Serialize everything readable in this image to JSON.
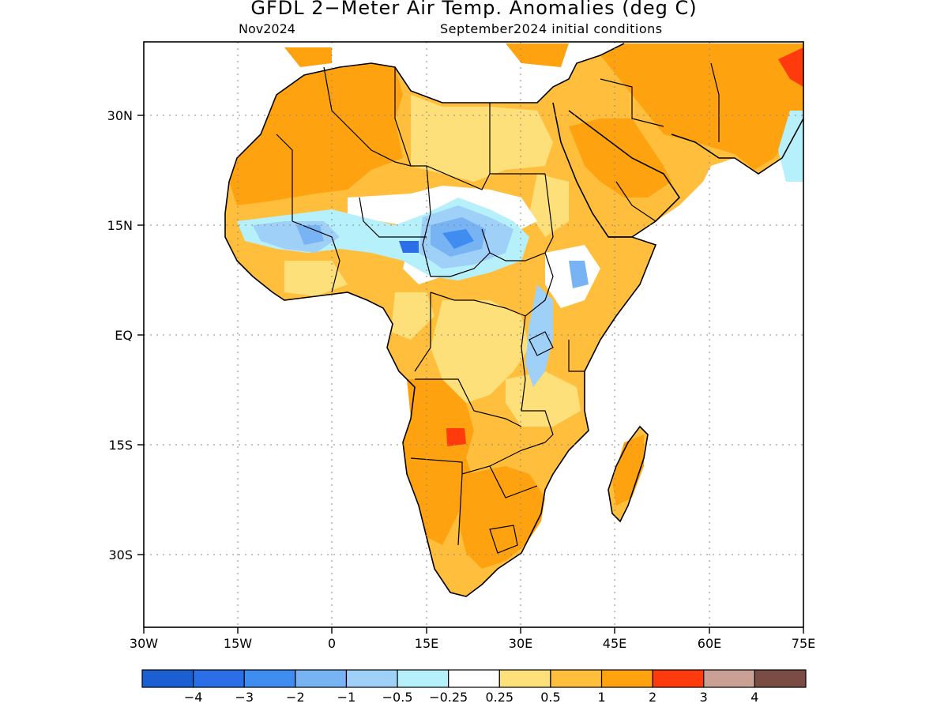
{
  "title": "GFDL 2−Meter Air Temp. Anomalies (deg C)",
  "subtitle_left": "Nov2024",
  "subtitle_right": "September2024 initial conditions",
  "map": {
    "lon_range": [
      -30,
      75
    ],
    "lat_range": [
      -40,
      40
    ],
    "lon_ticks": [
      {
        "value": -30,
        "label": "30W"
      },
      {
        "value": -15,
        "label": "15W"
      },
      {
        "value": 0,
        "label": "0"
      },
      {
        "value": 15,
        "label": "15E"
      },
      {
        "value": 30,
        "label": "30E"
      },
      {
        "value": 45,
        "label": "45E"
      },
      {
        "value": 60,
        "label": "60E"
      },
      {
        "value": 75,
        "label": "75E"
      }
    ],
    "lat_ticks": [
      {
        "value": 30,
        "label": "30N"
      },
      {
        "value": 15,
        "label": "15N"
      },
      {
        "value": 0,
        "label": "EQ"
      },
      {
        "value": -15,
        "label": "15S"
      },
      {
        "value": -30,
        "label": "30S"
      }
    ]
  },
  "colorbar": {
    "colors": [
      "#1b5fd2",
      "#2a6ee8",
      "#3f8df0",
      "#78b3f4",
      "#9fd0f8",
      "#b6f0fa",
      "#ffffff",
      "#fee07a",
      "#ffbf3d",
      "#ffa20f",
      "#ff3b0d",
      "#c9a093",
      "#7a4c43"
    ],
    "labels": [
      "−4",
      "−3",
      "−2",
      "−1",
      "−0.5",
      "−0.25",
      "0.25",
      "0.5",
      "1",
      "2",
      "3",
      "4"
    ]
  }
}
